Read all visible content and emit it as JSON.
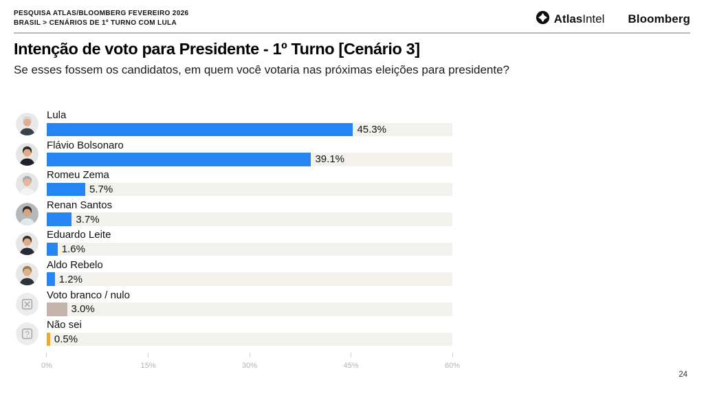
{
  "header": {
    "kicker_line1": "PESQUISA ATLAS/BLOOMBERG FEVEREIRO 2026",
    "kicker_line2": "BRASIL > CENÁRIOS DE 1º TURNO COM LULA",
    "logo_atlas_bold": "Atlas",
    "logo_atlas_light": "Intel",
    "logo_bloomberg": "Bloomberg"
  },
  "title": "Intenção de voto para Presidente - 1º Turno [Cenário 3]",
  "subtitle": "Se esses fossem os candidatos, em quem você votaria nas próximas eleições para presidente?",
  "page_number": "24",
  "chart_data": {
    "type": "bar",
    "orientation": "horizontal",
    "xlabel": "",
    "ylabel": "",
    "xlim": [
      0,
      60
    ],
    "x_ticks": [
      "0%",
      "15%",
      "30%",
      "45%",
      "60%"
    ],
    "x_tick_values": [
      0,
      15,
      30,
      45,
      60
    ],
    "bar_background": "#f2f1ec",
    "grid": false,
    "legend": false,
    "rows": [
      {
        "label": "Lula",
        "value": 45.3,
        "value_label": "45.3%",
        "color": "#2585f5",
        "avatar": "photo-lula"
      },
      {
        "label": "Flávio Bolsonaro",
        "value": 39.1,
        "value_label": "39.1%",
        "color": "#2585f5",
        "avatar": "photo-flavio-bolsonaro"
      },
      {
        "label": "Romeu Zema",
        "value": 5.7,
        "value_label": "5.7%",
        "color": "#2585f5",
        "avatar": "photo-romeu-zema"
      },
      {
        "label": "Renan Santos",
        "value": 3.7,
        "value_label": "3.7%",
        "color": "#2585f5",
        "avatar": "photo-renan-santos"
      },
      {
        "label": "Eduardo Leite",
        "value": 1.6,
        "value_label": "1.6%",
        "color": "#2585f5",
        "avatar": "photo-eduardo-leite"
      },
      {
        "label": "Aldo Rebelo",
        "value": 1.2,
        "value_label": "1.2%",
        "color": "#2585f5",
        "avatar": "photo-aldo-rebelo"
      },
      {
        "label": "Voto branco / nulo",
        "value": 3.0,
        "value_label": "3.0%",
        "color": "#c4b4ab",
        "avatar": "null-vote-icon"
      },
      {
        "label": "Não sei",
        "value": 0.5,
        "value_label": "0.5%",
        "color": "#eaa83d",
        "avatar": "question-icon"
      }
    ]
  }
}
